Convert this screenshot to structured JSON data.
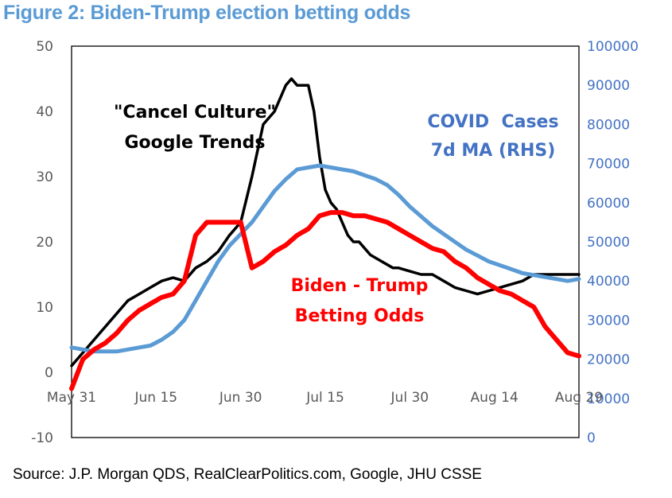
{
  "title": "Figure 2: Biden-Trump election betting odds",
  "source": "Source: J.P. Morgan QDS, RealClearPolitics.com, Google, JHU CSSE",
  "colors": {
    "title": "#5b9bd5",
    "cancel": "#000000",
    "covid": "#5b9bd5",
    "odds": "#ff0000",
    "right_axis": "#4472c4"
  },
  "chart_data": {
    "type": "line",
    "title": "Figure 2: Biden-Trump election betting odds",
    "x_ticks": [
      "May 31",
      "Jun 15",
      "Jun 30",
      "Jul 15",
      "Jul 30",
      "Aug 14",
      "Aug 29"
    ],
    "x_range": [
      0,
      90
    ],
    "y_left": {
      "range": [
        -10,
        50
      ],
      "ticks": [
        "50",
        "40",
        "30",
        "20",
        "10",
        "0",
        "-10"
      ]
    },
    "y_right": {
      "range": [
        0,
        100000
      ],
      "ticks": [
        "100000",
        "90000",
        "80000",
        "70000",
        "60000",
        "50000",
        "40000",
        "30000",
        "20000",
        "10000",
        "0"
      ]
    },
    "annotations": {
      "cancel": [
        "\"Cancel Culture\"",
        "Google Trends"
      ],
      "covid": [
        "COVID  Cases",
        "7d MA (RHS)"
      ],
      "odds": [
        "Biden - Trump",
        "Betting Odds"
      ]
    },
    "series": [
      {
        "name": "\"Cancel Culture\" Google Trends",
        "axis": "left",
        "color": "#000000",
        "x": [
          0,
          2,
          4,
          6,
          8,
          10,
          12,
          14,
          16,
          18,
          20,
          22,
          24,
          26,
          28,
          30,
          32,
          34,
          36,
          38,
          39,
          40,
          41,
          42,
          43,
          44,
          45,
          46,
          47,
          48,
          49,
          50,
          51,
          52,
          53,
          54,
          55,
          56,
          57,
          58,
          60,
          62,
          64,
          66,
          68,
          70,
          72,
          74,
          76,
          78,
          80,
          82,
          84,
          86,
          88,
          90
        ],
        "values": [
          1,
          3,
          5,
          7,
          9,
          11,
          12,
          13,
          14,
          14.5,
          14,
          16,
          17,
          18.5,
          21,
          23,
          30,
          38,
          40,
          44,
          45,
          44,
          44,
          44,
          40,
          33,
          28,
          26,
          25,
          23,
          21,
          20,
          20,
          19,
          18,
          17.5,
          17,
          16.5,
          16,
          16,
          15.5,
          15,
          15,
          14,
          13,
          12.5,
          12,
          12.5,
          13,
          13.5,
          14,
          15,
          15,
          15,
          15,
          15
        ]
      },
      {
        "name": "COVID Cases 7d MA (RHS)",
        "axis": "right",
        "color": "#5b9bd5",
        "x": [
          0,
          2,
          4,
          6,
          8,
          10,
          12,
          14,
          16,
          18,
          20,
          22,
          24,
          26,
          28,
          30,
          32,
          34,
          36,
          38,
          40,
          42,
          44,
          46,
          48,
          50,
          52,
          54,
          56,
          58,
          60,
          62,
          64,
          66,
          68,
          70,
          72,
          74,
          76,
          78,
          80,
          82,
          84,
          86,
          88,
          90
        ],
        "values": [
          23000,
          22500,
          22000,
          22000,
          22000,
          22500,
          23000,
          23500,
          25000,
          27000,
          30000,
          35000,
          40000,
          45000,
          49000,
          52000,
          55000,
          59000,
          63000,
          66000,
          68500,
          69000,
          69500,
          69000,
          68500,
          68000,
          67000,
          66000,
          64500,
          62000,
          59000,
          56500,
          54000,
          52000,
          50000,
          48000,
          46500,
          45000,
          44000,
          43000,
          42000,
          41500,
          41000,
          40500,
          40000,
          40500
        ]
      },
      {
        "name": "Biden - Trump Betting Odds",
        "axis": "left",
        "color": "#ff0000",
        "x": [
          0,
          2,
          4,
          6,
          8,
          10,
          12,
          14,
          16,
          18,
          20,
          22,
          24,
          26,
          28,
          30,
          32,
          34,
          36,
          38,
          40,
          42,
          44,
          46,
          48,
          50,
          52,
          54,
          56,
          58,
          60,
          62,
          64,
          66,
          68,
          70,
          72,
          74,
          76,
          78,
          80,
          82,
          84,
          86,
          88,
          90
        ],
        "values": [
          -2.5,
          2,
          3.5,
          4.5,
          6,
          8,
          9.5,
          10.5,
          11.5,
          12,
          14,
          21,
          23,
          23,
          23,
          23,
          16,
          17,
          18.5,
          19.5,
          21,
          22,
          24,
          24.5,
          24.5,
          24,
          24,
          23.5,
          23,
          22,
          21,
          20,
          19,
          18.5,
          17,
          16,
          14.5,
          13.5,
          12.5,
          12,
          11,
          10,
          7,
          5,
          3,
          2.5
        ]
      }
    ]
  }
}
